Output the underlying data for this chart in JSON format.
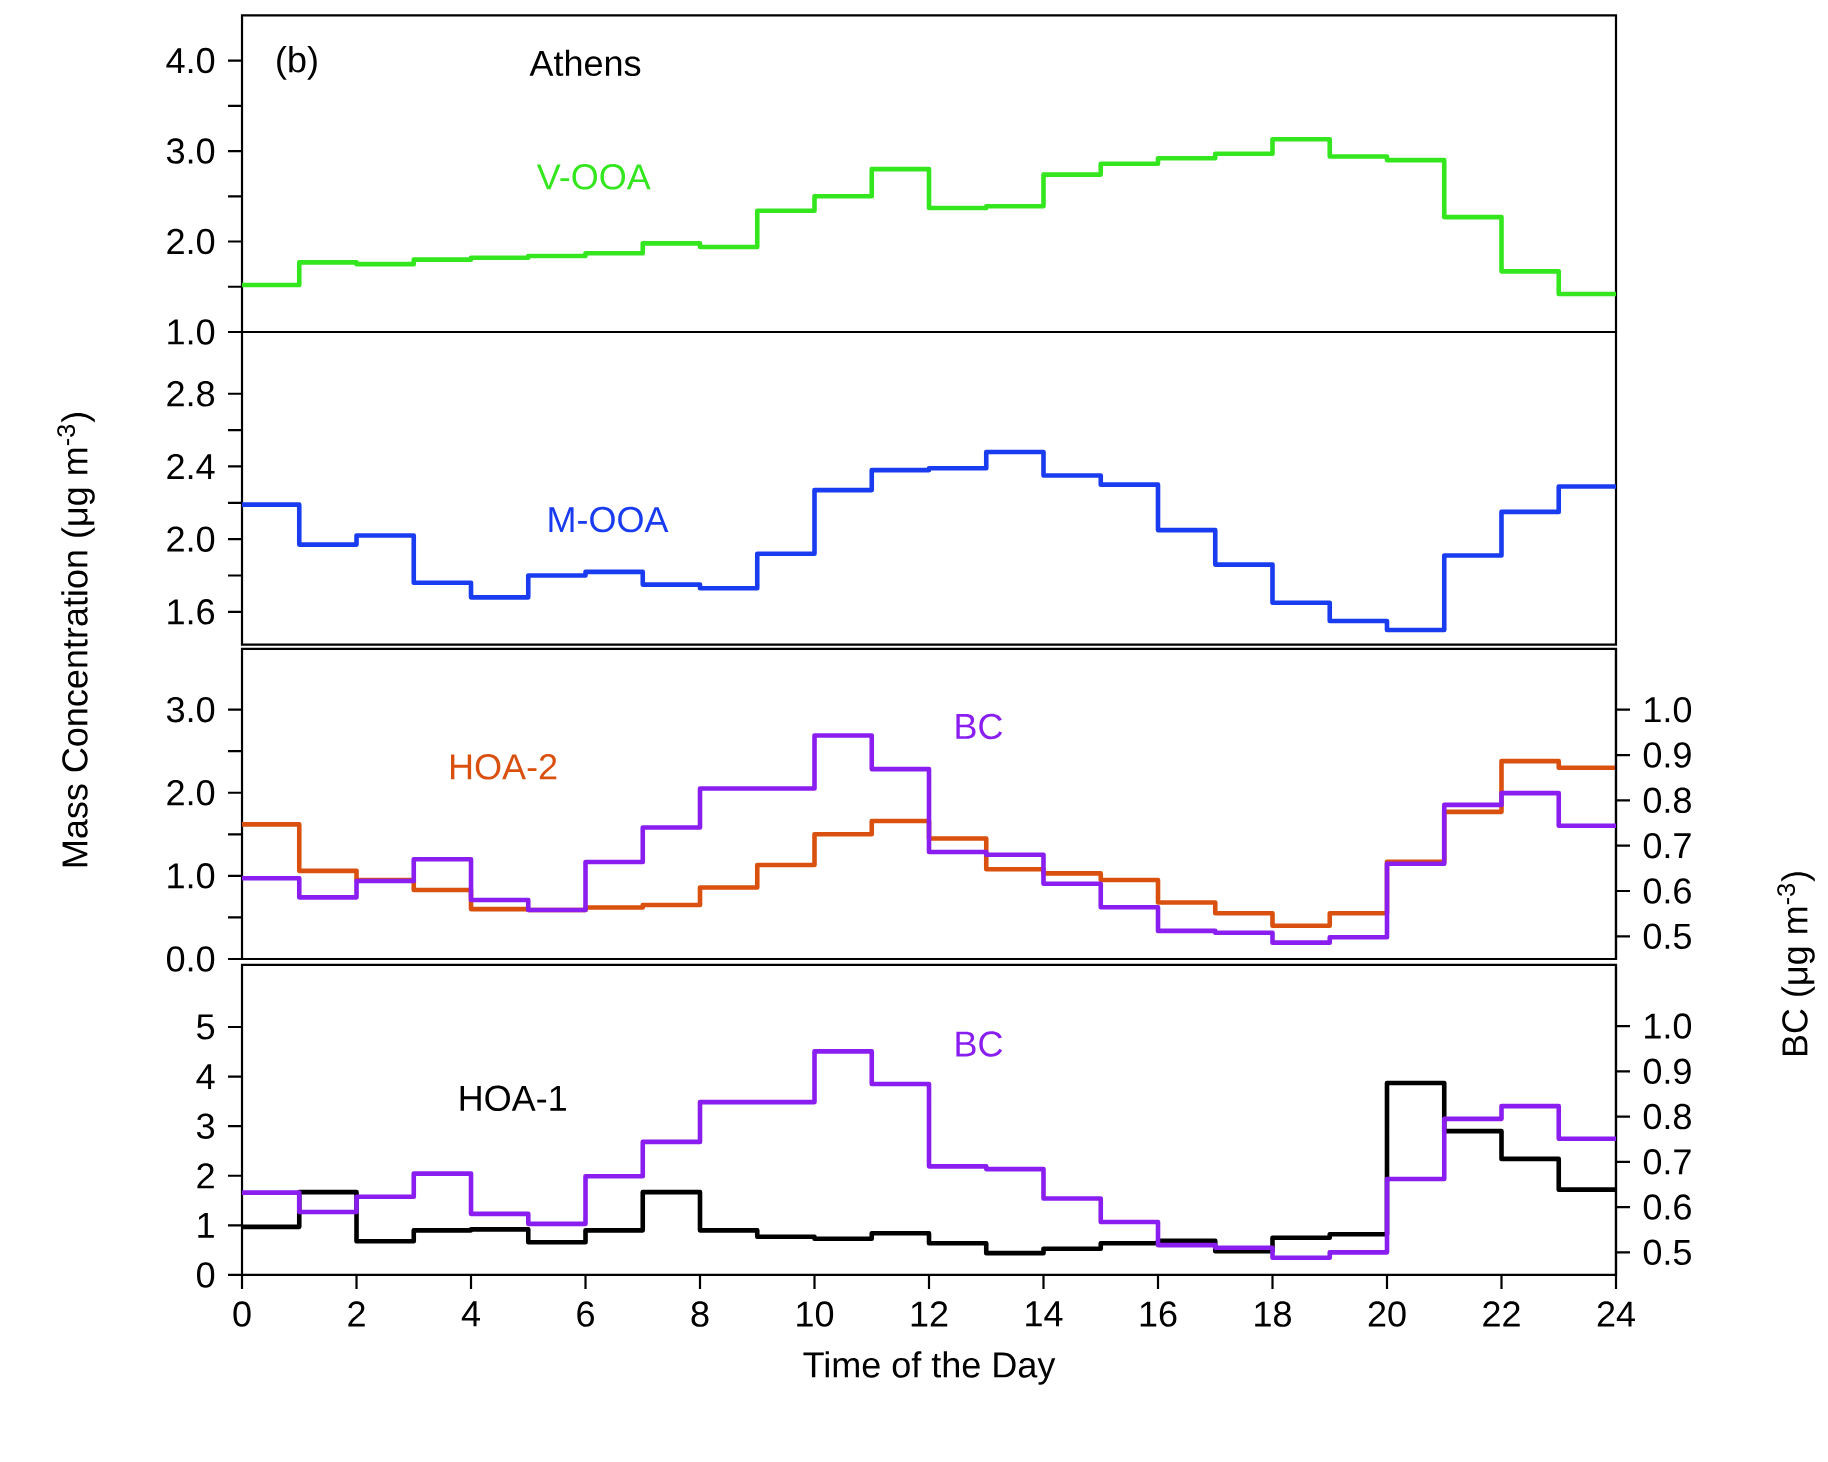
{
  "chart_data": [
    {
      "type": "step",
      "title": "Athens",
      "annotations": [
        "(b)"
      ],
      "x": [
        0,
        1,
        2,
        3,
        4,
        5,
        6,
        7,
        8,
        9,
        10,
        11,
        12,
        13,
        14,
        15,
        16,
        17,
        18,
        19,
        20,
        21,
        22,
        23,
        24
      ],
      "xlim": [
        0,
        24
      ],
      "ylim": [
        1.0,
        4.5
      ],
      "tick_labels": "y",
      "yticks": [
        {
          "value": 1,
          "label": "1.0"
        },
        {
          "value": 1.5,
          "label": null
        },
        {
          "value": 2,
          "label": "2.0"
        },
        {
          "value": 2.5,
          "label": null
        },
        {
          "value": 3,
          "label": "3.0"
        },
        {
          "value": 3.5,
          "label": null
        },
        {
          "value": 4,
          "label": "4.0"
        }
      ],
      "series": [
        {
          "name": "V-OOA",
          "color": "#33e61e",
          "values": [
            1.52,
            1.77,
            1.75,
            1.8,
            1.82,
            1.84,
            1.87,
            1.98,
            1.94,
            2.34,
            2.5,
            2.8,
            2.37,
            2.39,
            2.74,
            2.86,
            2.92,
            2.97,
            3.13,
            2.94,
            2.9,
            2.27,
            1.67,
            1.42,
            1.42
          ]
        }
      ]
    },
    {
      "type": "step",
      "ylabel": "Mass Concentration (μg m$^{-3}$)",
      "x": [
        0,
        1,
        2,
        3,
        4,
        5,
        6,
        7,
        8,
        9,
        10,
        11,
        12,
        13,
        14,
        15,
        16,
        17,
        18,
        19,
        20,
        21,
        22,
        23,
        24
      ],
      "xlim": [
        0,
        24
      ],
      "ylim": [
        1.42,
        3.14
      ],
      "tick_labels": "y",
      "yticks": [
        {
          "value": 1.6,
          "label": "1.6"
        },
        {
          "value": 1.8,
          "label": null
        },
        {
          "value": 2.0,
          "label": "2.0"
        },
        {
          "value": 2.2,
          "label": null
        },
        {
          "value": 2.4,
          "label": "2.4"
        },
        {
          "value": 2.6,
          "label": null
        },
        {
          "value": 2.8,
          "label": "2.8"
        }
      ],
      "series": [
        {
          "name": "M-OOA",
          "color": "#1a3cf0",
          "values": [
            2.19,
            1.97,
            2.02,
            1.76,
            1.68,
            1.8,
            1.82,
            1.75,
            1.73,
            1.92,
            2.27,
            2.38,
            2.39,
            2.48,
            2.35,
            2.3,
            2.05,
            1.86,
            1.65,
            1.55,
            1.5,
            1.91,
            2.15,
            2.29,
            2.29
          ]
        }
      ]
    },
    {
      "type": "step",
      "y2label": "BC (μg m$^{-3}$)",
      "x": [
        0,
        1,
        2,
        3,
        4,
        5,
        6,
        7,
        8,
        9,
        10,
        11,
        12,
        13,
        14,
        15,
        16,
        17,
        18,
        19,
        20,
        21,
        22,
        23,
        24
      ],
      "xlim": [
        0,
        24
      ],
      "ylim": [
        0,
        3.73
      ],
      "y2lim": [
        0.45,
        1.134
      ],
      "tick_labels": "y",
      "yticks": [
        {
          "value": 0,
          "label": "0.0"
        },
        {
          "value": 0.5,
          "label": null
        },
        {
          "value": 1,
          "label": "1.0"
        },
        {
          "value": 1.5,
          "label": null
        },
        {
          "value": 2,
          "label": "2.0"
        },
        {
          "value": 2.5,
          "label": null
        },
        {
          "value": 3,
          "label": "3.0"
        }
      ],
      "y2ticks": [
        0.5,
        0.6,
        0.7,
        0.8,
        0.9,
        {
          "value": 1.0,
          "label": "1.0"
        }
      ],
      "series": [
        {
          "name": "HOA-2",
          "color": "#d9500f",
          "values": [
            1.62,
            1.06,
            0.95,
            0.83,
            0.6,
            0.59,
            0.62,
            0.65,
            0.86,
            1.13,
            1.5,
            1.66,
            1.45,
            1.08,
            1.03,
            0.95,
            0.68,
            0.55,
            0.4,
            0.55,
            1.17,
            1.77,
            2.38,
            2.3,
            2.3
          ]
        },
        {
          "name": "BC",
          "color": "#8a1ef0",
          "axis": "y2",
          "values": [
            0.628,
            0.586,
            0.622,
            0.67,
            0.58,
            0.558,
            0.664,
            0.74,
            0.826,
            0.826,
            0.943,
            0.869,
            0.686,
            0.68,
            0.616,
            0.564,
            0.512,
            0.508,
            0.486,
            0.498,
            0.66,
            0.79,
            0.816,
            0.744,
            0.744
          ]
        }
      ]
    },
    {
      "type": "step",
      "xlabel": "Time of the Day",
      "x": [
        0,
        1,
        2,
        3,
        4,
        5,
        6,
        7,
        8,
        9,
        10,
        11,
        12,
        13,
        14,
        15,
        16,
        17,
        18,
        19,
        20,
        21,
        22,
        23,
        24
      ],
      "xlim": [
        0,
        24
      ],
      "ylim": [
        0,
        6.25
      ],
      "y2lim": [
        0.45,
        1.135
      ],
      "xticks": [
        0,
        2,
        4,
        6,
        8,
        10,
        12,
        14,
        16,
        18,
        20,
        22,
        24
      ],
      "yticks": [
        0,
        1,
        2,
        3,
        4,
        5
      ],
      "y2ticks": [
        0.5,
        0.6,
        0.7,
        0.8,
        0.9,
        {
          "value": 1.0,
          "label": "1.0"
        }
      ],
      "series": [
        {
          "name": "HOA-1",
          "color": "#000000",
          "values": [
            0.97,
            1.67,
            0.68,
            0.9,
            0.92,
            0.66,
            0.9,
            1.67,
            0.9,
            0.77,
            0.73,
            0.84,
            0.64,
            0.44,
            0.53,
            0.64,
            0.69,
            0.48,
            0.75,
            0.82,
            3.87,
            2.9,
            2.34,
            1.72,
            1.72
          ]
        },
        {
          "name": "BC",
          "color": "#8a1ef0",
          "axis": "y2",
          "values": [
            0.632,
            0.589,
            0.623,
            0.674,
            0.585,
            0.563,
            0.668,
            0.744,
            0.832,
            0.832,
            0.944,
            0.872,
            0.69,
            0.684,
            0.619,
            0.567,
            0.516,
            0.51,
            0.488,
            0.5,
            0.662,
            0.795,
            0.823,
            0.751,
            0.751
          ]
        }
      ]
    }
  ]
}
